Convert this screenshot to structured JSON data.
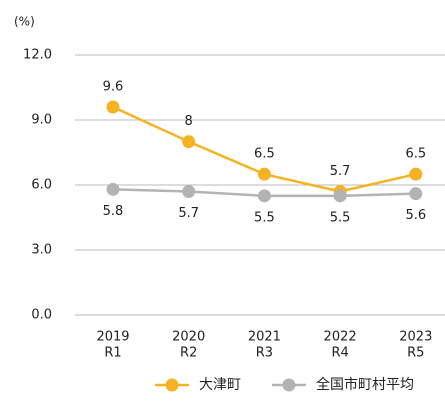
{
  "chart_data": {
    "type": "line",
    "unit_label": "(%)",
    "categories": [
      [
        "2019",
        "R1"
      ],
      [
        "2020",
        "R2"
      ],
      [
        "2021",
        "R3"
      ],
      [
        "2022",
        "R4"
      ],
      [
        "2023",
        "R5"
      ]
    ],
    "series": [
      {
        "name": "大津町",
        "color": "#f5b324",
        "values": [
          9.6,
          8.0,
          6.5,
          5.7,
          6.5
        ]
      },
      {
        "name": "全国市町村平均",
        "color": "#b3b3b3",
        "values": [
          5.8,
          5.7,
          5.5,
          5.5,
          5.6
        ]
      }
    ],
    "ylim": [
      0,
      12
    ],
    "yticks": [
      {
        "value": 0,
        "label": "0.0"
      },
      {
        "value": 3,
        "label": "3.0"
      },
      {
        "value": 6,
        "label": "6.0"
      },
      {
        "value": 9,
        "label": "9.0"
      },
      {
        "value": 12,
        "label": "12.0"
      }
    ],
    "grid": true,
    "legend": "bottom"
  }
}
